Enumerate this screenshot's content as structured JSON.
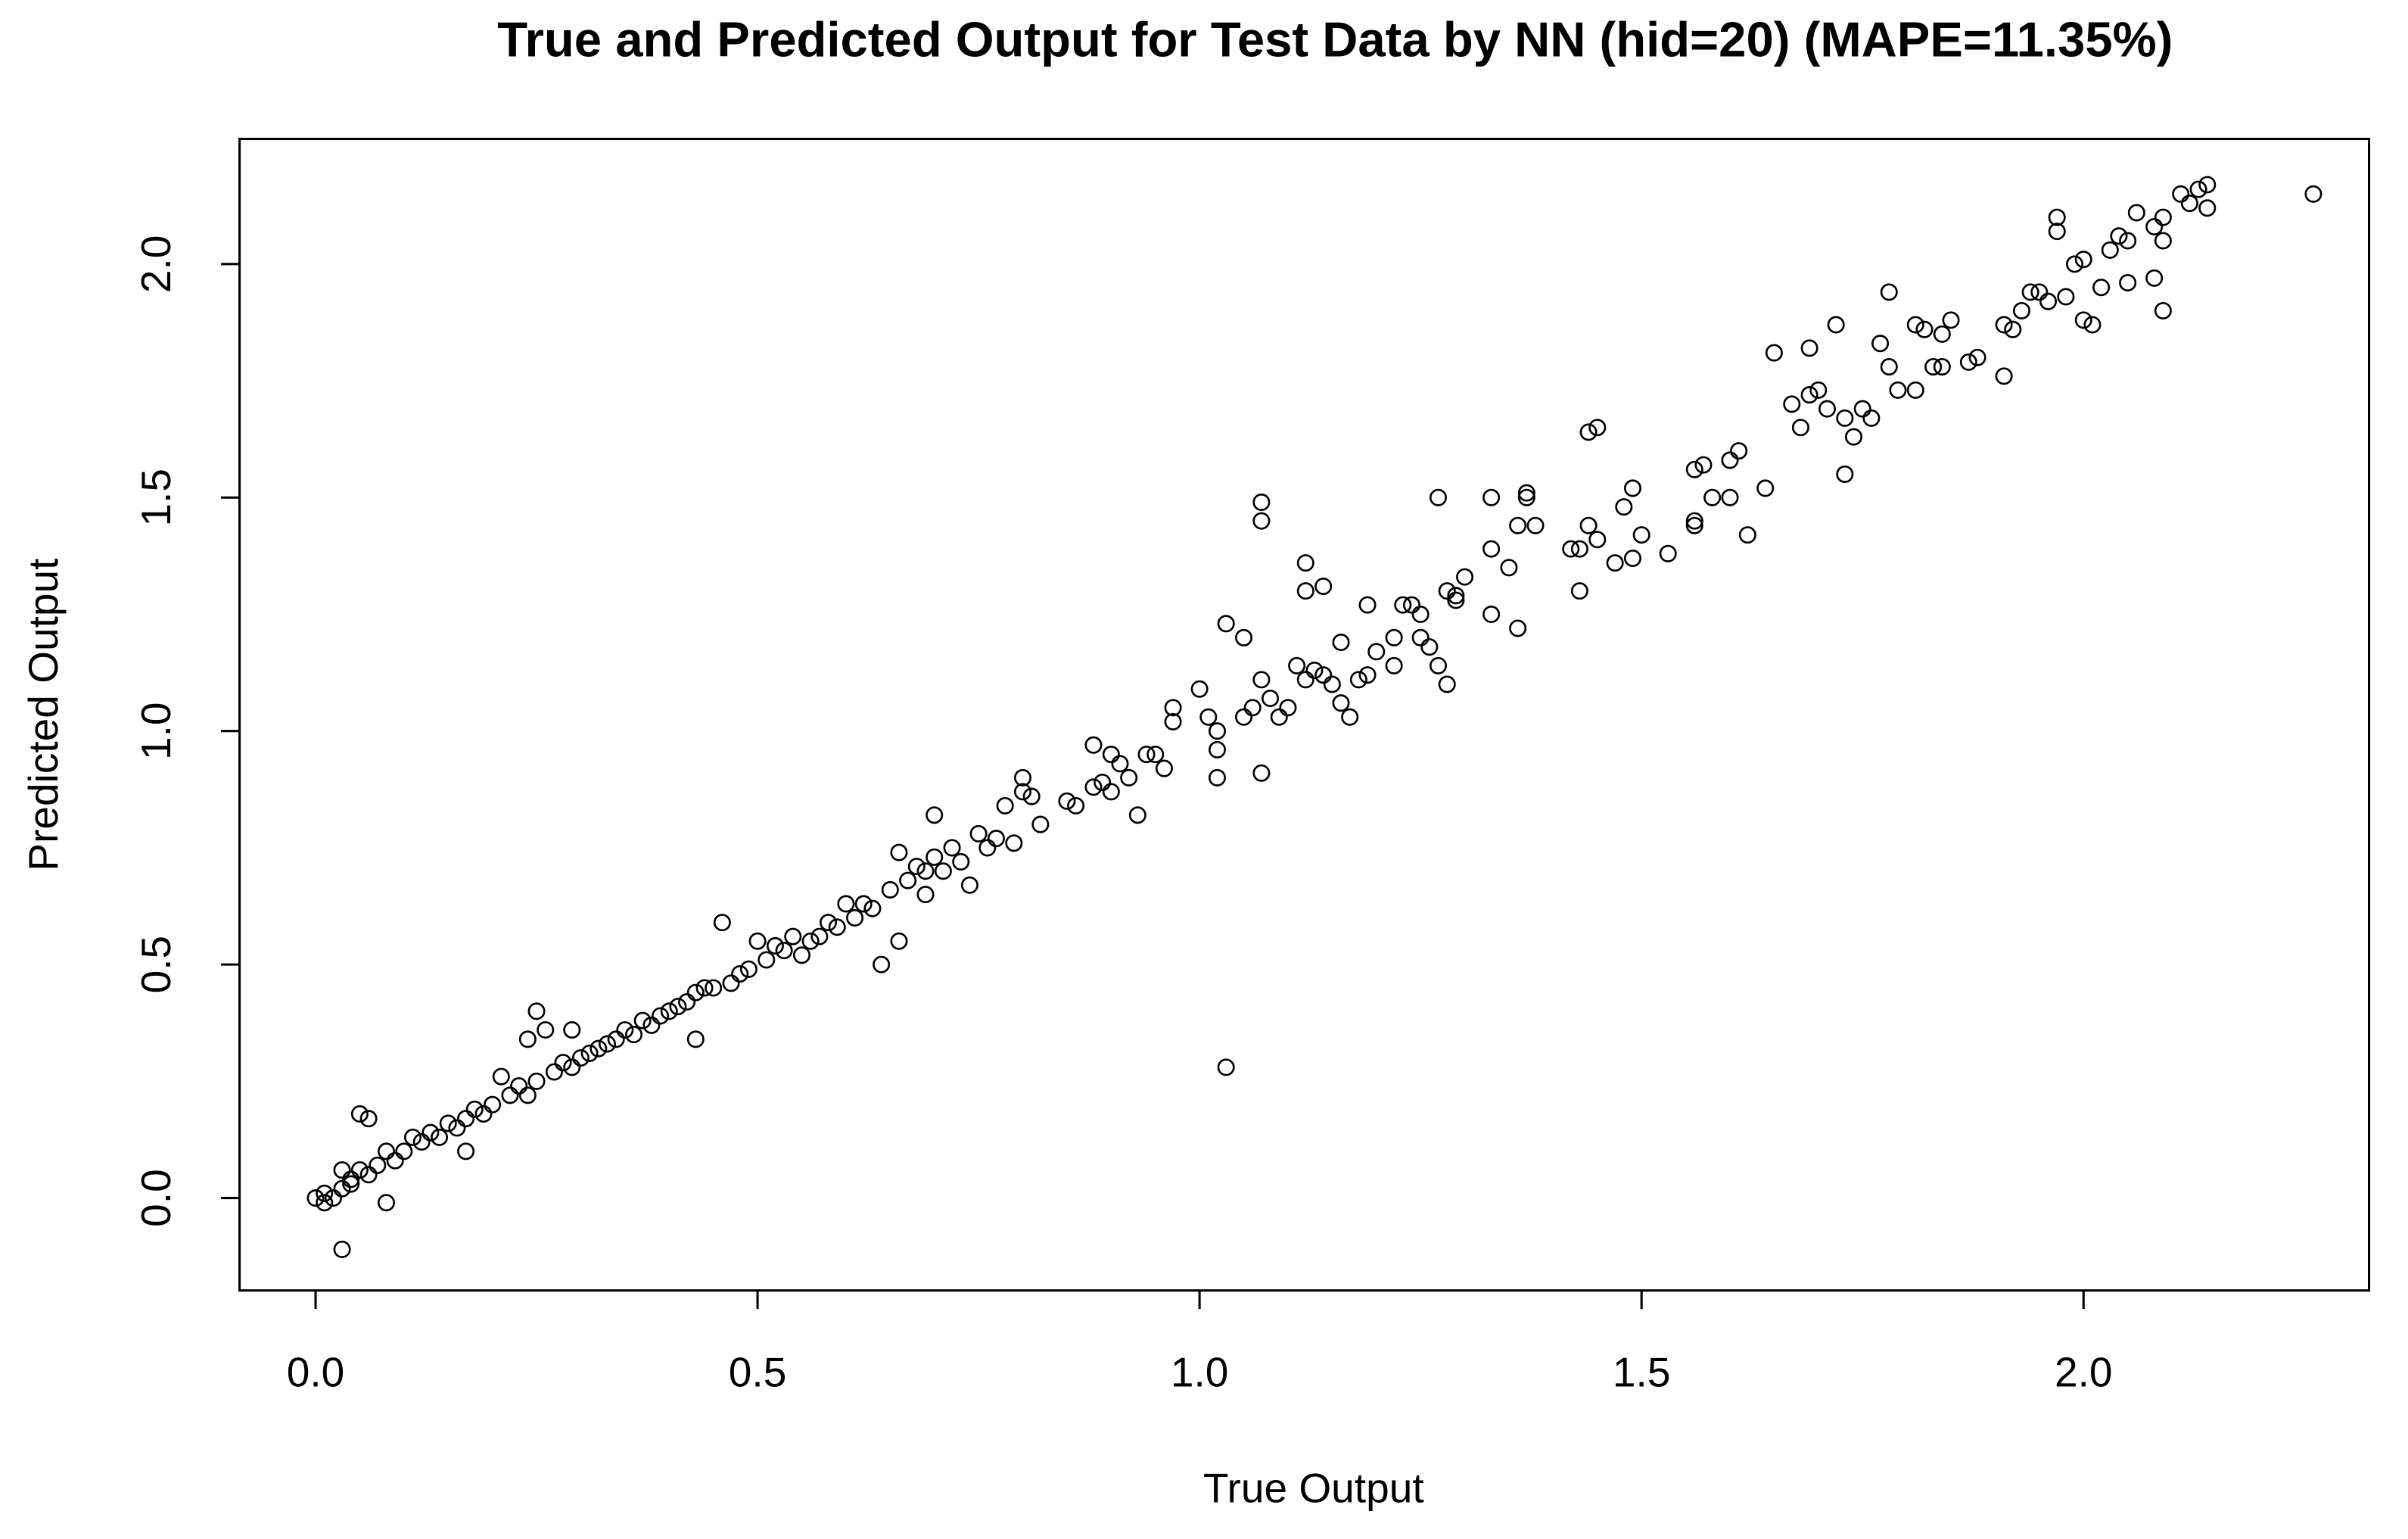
{
  "chart_data": {
    "type": "scatter",
    "title": "True and Predicted Output for Test Data by NN (hid=20) (MAPE=11.35%)",
    "xlabel": "True Output",
    "ylabel": "Predicted Output",
    "color": "#000000",
    "grid": false,
    "xlim": [
      -0.086,
      2.323
    ],
    "ylim": [
      -0.198,
      2.268
    ],
    "xticks": [
      {
        "value": 0,
        "label": "0.0"
      },
      0.5,
      {
        "value": 1,
        "label": "1.0"
      },
      1.5,
      {
        "value": 2,
        "label": "2.0"
      }
    ],
    "yticks": [
      {
        "value": 0,
        "label": "0.0"
      },
      0.5,
      {
        "value": 1,
        "label": "1.0"
      },
      1.5,
      {
        "value": 2,
        "label": "2.0"
      }
    ],
    "x": [
      2.26,
      2.14,
      2.13,
      2.14,
      2.12,
      2.11,
      2.09,
      2.08,
      2.09,
      2.06,
      2.05,
      2.03,
      2.04,
      2.05,
      2.08,
      2.09,
      2.02,
      2.0,
      2.01,
      1.98,
      1.97,
      1.97,
      2.0,
      1.99,
      1.96,
      1.95,
      1.94,
      1.93,
      1.92,
      1.91,
      1.91,
      1.88,
      1.87,
      1.85,
      1.84,
      1.83,
      1.84,
      1.82,
      1.81,
      1.81,
      1.79,
      1.78,
      1.78,
      1.77,
      1.76,
      1.75,
      1.74,
      1.73,
      1.73,
      1.72,
      1.71,
      1.7,
      1.69,
      1.69,
      1.68,
      1.67,
      1.65,
      1.64,
      1.62,
      1.61,
      1.6,
      1.6,
      1.58,
      1.57,
      1.56,
      1.56,
      1.56,
      1.53,
      1.5,
      1.49,
      1.49,
      1.48,
      1.47,
      1.45,
      1.44,
      1.45,
      1.44,
      1.43,
      1.43,
      1.42,
      1.38,
      1.37,
      1.37,
      1.36,
      1.36,
      1.35,
      1.33,
      1.33,
      1.33,
      1.3,
      1.29,
      1.29,
      1.28,
      1.28,
      1.27,
      1.27,
      1.26,
      1.25,
      1.25,
      1.24,
      1.23,
      1.22,
      1.22,
      1.2,
      1.19,
      1.18,
      1.19,
      1.17,
      1.16,
      1.16,
      1.15,
      1.14,
      1.13,
      1.12,
      1.12,
      1.14,
      1.12,
      1.11,
      1.1,
      1.09,
      1.08,
      1.07,
      1.07,
      1.07,
      1.07,
      1.06,
      1.05,
      1.05,
      1.03,
      1.03,
      1.02,
      1.02,
      1.02,
      1.01,
      1.0,
      0.97,
      0.97,
      0.96,
      0.95,
      0.94,
      0.93,
      0.92,
      0.91,
      0.9,
      0.9,
      0.89,
      0.88,
      0.88,
      0.86,
      0.85,
      0.82,
      0.81,
      0.8,
      0.8,
      0.79,
      0.78,
      0.77,
      0.76,
      0.75,
      0.74,
      0.73,
      0.72,
      0.71,
      0.7,
      0.7,
      0.69,
      0.69,
      0.68,
      0.67,
      0.66,
      0.66,
      0.65,
      0.64,
      0.63,
      0.62,
      0.61,
      0.6,
      0.59,
      0.58,
      0.57,
      0.56,
      0.55,
      0.54,
      0.53,
      0.52,
      0.51,
      0.5,
      0.49,
      0.48,
      0.47,
      0.46,
      0.45,
      0.44,
      0.43,
      0.43,
      0.42,
      0.41,
      0.4,
      0.39,
      0.38,
      0.37,
      0.36,
      0.35,
      0.34,
      0.33,
      0.32,
      0.31,
      0.3,
      0.29,
      0.29,
      0.28,
      0.27,
      0.26,
      0.25,
      0.25,
      0.24,
      0.24,
      0.23,
      0.22,
      0.21,
      0.2,
      0.19,
      0.18,
      0.17,
      0.17,
      0.16,
      0.15,
      0.14,
      0.13,
      0.12,
      0.11,
      0.1,
      0.09,
      0.08,
      0.08,
      0.07,
      0.06,
      0.05,
      0.06,
      0.05,
      0.04,
      0.04,
      0.03,
      0.03,
      0.03,
      0.02,
      0.01,
      0.01,
      0.0
    ],
    "y": [
      2.15,
      2.17,
      2.16,
      2.12,
      2.13,
      2.15,
      2.1,
      2.08,
      2.05,
      2.11,
      2.05,
      2.03,
      2.06,
      1.96,
      1.97,
      1.9,
      1.95,
      1.88,
      1.87,
      1.93,
      2.1,
      2.07,
      2.01,
      2.0,
      1.92,
      1.94,
      1.94,
      1.9,
      1.86,
      1.87,
      1.76,
      1.8,
      1.79,
      1.88,
      1.78,
      1.78,
      1.85,
      1.86,
      1.87,
      1.73,
      1.73,
      1.94,
      1.78,
      1.83,
      1.67,
      1.69,
      1.63,
      1.55,
      1.67,
      1.87,
      1.69,
      1.73,
      1.72,
      1.82,
      1.65,
      1.7,
      1.81,
      1.52,
      1.42,
      1.6,
      1.58,
      1.5,
      1.5,
      1.57,
      1.56,
      1.45,
      1.44,
      1.38,
      1.42,
      1.37,
      1.52,
      1.48,
      1.36,
      1.65,
      1.64,
      1.41,
      1.44,
      1.39,
      1.3,
      1.39,
      1.44,
      1.5,
      1.51,
      1.22,
      1.44,
      1.35,
      1.5,
      1.39,
      1.25,
      1.33,
      1.29,
      1.28,
      1.3,
      1.1,
      1.5,
      1.14,
      1.18,
      1.25,
      1.2,
      1.27,
      1.27,
      1.2,
      1.14,
      1.17,
      1.12,
      1.11,
      1.27,
      1.03,
      1.19,
      1.06,
      1.1,
      1.12,
      1.13,
      1.36,
      1.3,
      1.31,
      1.11,
      1.14,
      1.05,
      1.03,
      1.07,
      1.45,
      1.49,
      1.11,
      0.91,
      1.05,
      1.03,
      1.2,
      1.23,
      0.28,
      0.96,
      0.9,
      1.0,
      1.03,
      1.09,
      1.02,
      1.05,
      0.92,
      0.95,
      0.95,
      0.82,
      0.9,
      0.93,
      0.95,
      0.87,
      0.89,
      0.88,
      0.97,
      0.84,
      0.85,
      0.8,
      0.86,
      0.9,
      0.87,
      0.76,
      0.84,
      0.77,
      0.75,
      0.78,
      0.67,
      0.72,
      0.75,
      0.7,
      0.82,
      0.73,
      0.7,
      0.65,
      0.71,
      0.68,
      0.74,
      0.55,
      0.66,
      0.5,
      0.62,
      0.63,
      0.6,
      0.63,
      0.58,
      0.59,
      0.56,
      0.55,
      0.52,
      0.56,
      0.53,
      0.54,
      0.51,
      0.55,
      0.49,
      0.48,
      0.46,
      0.59,
      0.45,
      0.45,
      0.34,
      0.44,
      0.42,
      0.41,
      0.4,
      0.39,
      0.37,
      0.38,
      0.35,
      0.36,
      0.34,
      0.33,
      0.32,
      0.31,
      0.3,
      0.36,
      0.28,
      0.29,
      0.27,
      0.36,
      0.4,
      0.25,
      0.34,
      0.22,
      0.24,
      0.22,
      0.26,
      0.2,
      0.18,
      0.19,
      0.1,
      0.17,
      0.15,
      0.16,
      0.13,
      0.14,
      0.12,
      0.13,
      0.1,
      0.08,
      0.1,
      -0.01,
      0.07,
      0.17,
      0.18,
      0.05,
      0.06,
      0.04,
      0.03,
      0.06,
      0.02,
      -0.11,
      0.0,
      -0.01,
      0.01,
      0.0
    ]
  }
}
